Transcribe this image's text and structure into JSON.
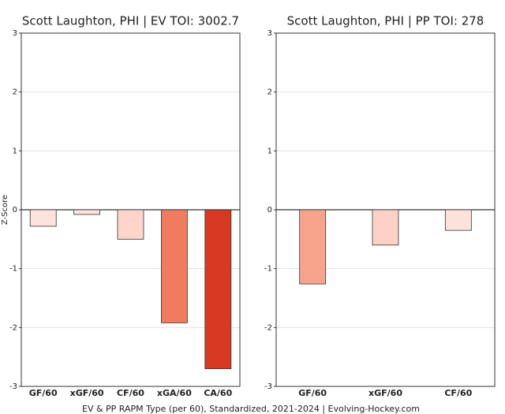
{
  "chart_data": [
    {
      "type": "bar",
      "title": "Scott Laughton, PHI  |  EV TOI: 3002.7",
      "ylabel": "Z-Score",
      "categories": [
        "GF/60",
        "xGF/60",
        "CF/60",
        "xGA/60",
        "CA/60"
      ],
      "values": [
        -0.28,
        -0.08,
        -0.5,
        -1.92,
        -2.7
      ],
      "colors": [
        "#fde3de",
        "#fde3de",
        "#fdd5cb",
        "#f07b5f",
        "#d83923"
      ],
      "ylim": [
        -3,
        3
      ],
      "yticks": [
        -3,
        -2,
        -1,
        0,
        1,
        2,
        3
      ],
      "grid": true
    },
    {
      "type": "bar",
      "title": "Scott Laughton, PHI  |  PP TOI: 278",
      "categories": [
        "GF/60",
        "xGF/60",
        "CF/60"
      ],
      "values": [
        -1.26,
        -0.6,
        -0.35
      ],
      "colors": [
        "#f8a48d",
        "#fdd1c5",
        "#fde2db"
      ],
      "ylim": [
        -3,
        3
      ],
      "yticks": [
        -3,
        -2,
        -1,
        0,
        1,
        2,
        3
      ],
      "grid": true
    }
  ],
  "caption": "EV & PP RAPM Type (per 60), Standardized, 2021-2024  |  Evolving-Hockey.com"
}
